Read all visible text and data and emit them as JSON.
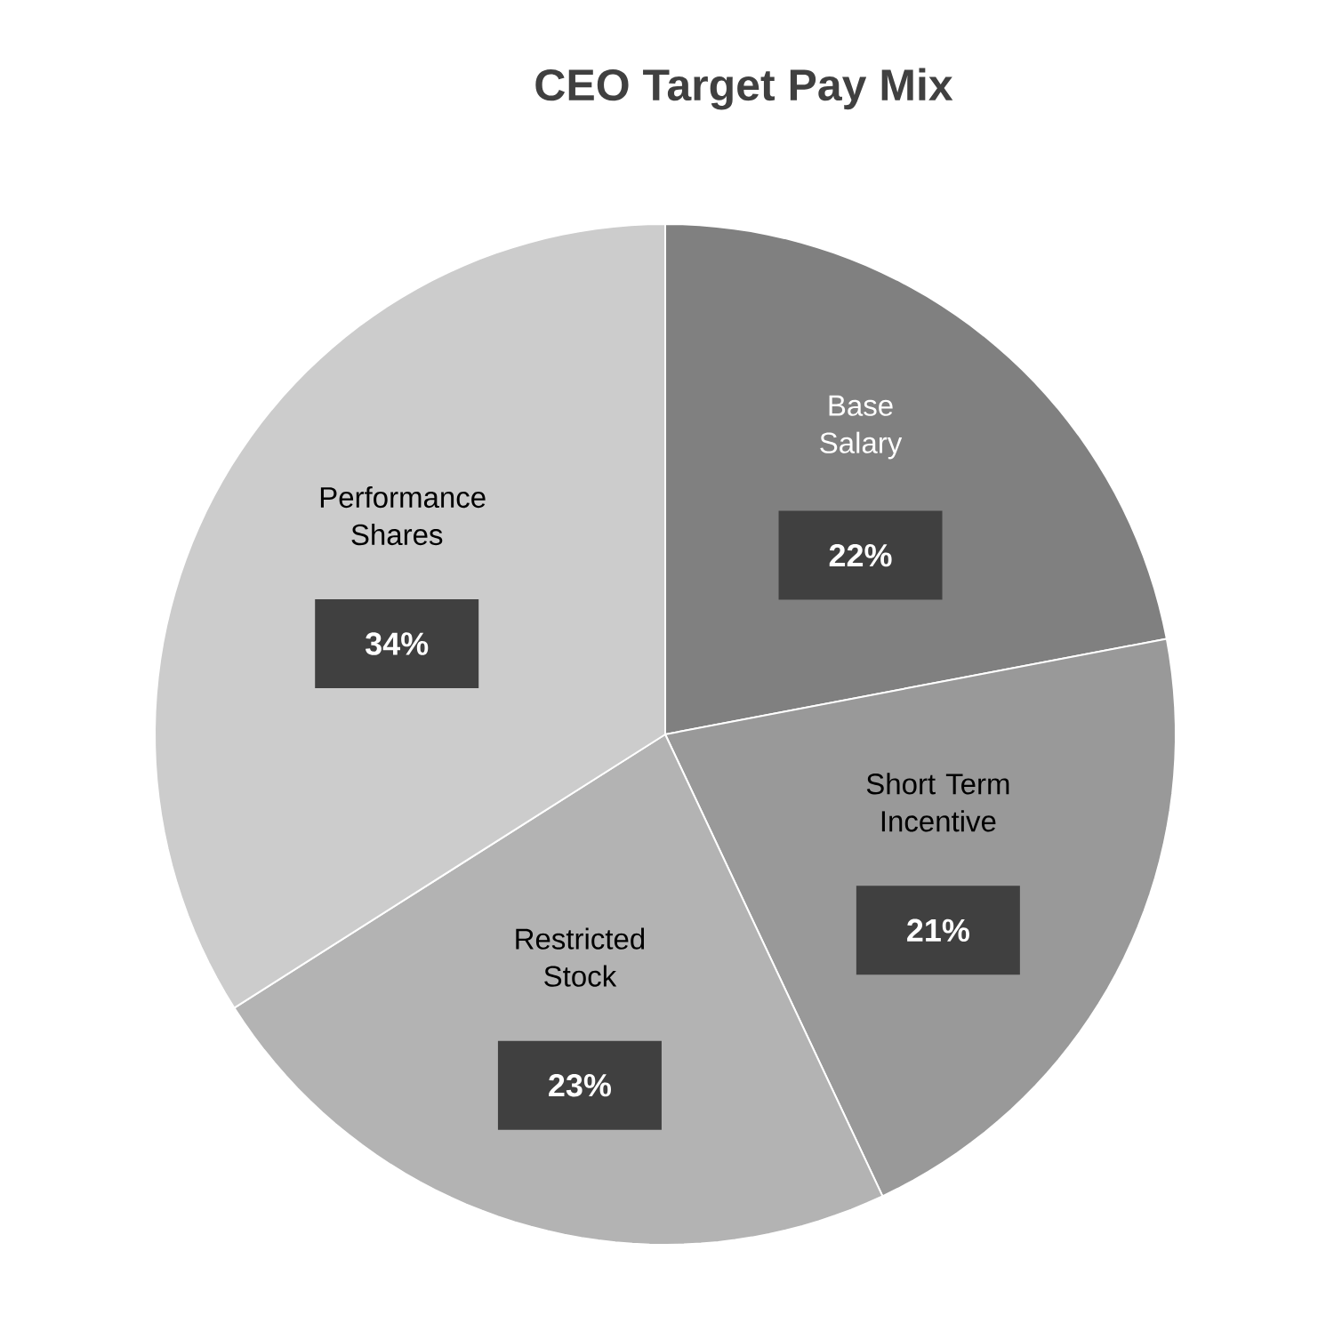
{
  "chart_data": {
    "type": "pie",
    "title": "CEO Target Pay Mix",
    "categories": [
      "Base Salary",
      "Short Term Incentive",
      "Restricted Stock",
      "Performance Shares"
    ],
    "values": [
      22,
      21,
      23,
      34
    ],
    "colors": [
      "#808080",
      "#999999",
      "#b3b3b3",
      "#cccccc"
    ],
    "value_labels": [
      "22%",
      "21%",
      "23%",
      "34%"
    ]
  }
}
